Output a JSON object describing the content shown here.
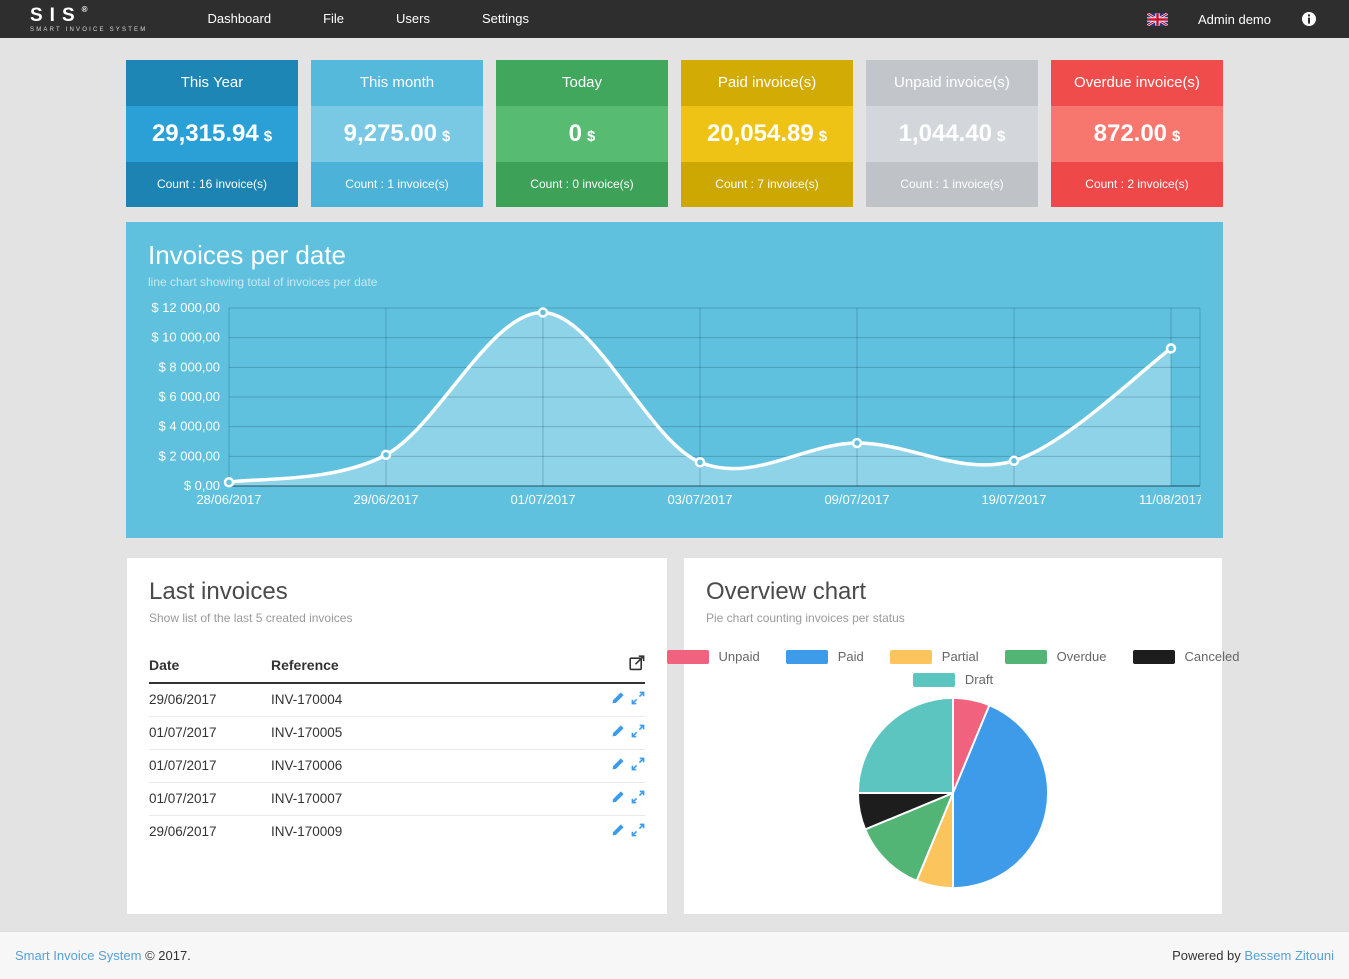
{
  "navbar": {
    "brand_name": "SIS",
    "brand_registered": "®",
    "brand_subtitle": "SMART INVOICE SYSTEM",
    "items": [
      "Dashboard",
      "File",
      "Users",
      "Settings"
    ],
    "user_label": "Admin demo"
  },
  "stat_cards": [
    {
      "title": "This Year",
      "value": "29,315.94",
      "currency": "$",
      "count_label": "Count : 16 invoice(s)",
      "header_color": "#1e86b5",
      "body_color": "#2aa0d6",
      "footer_color": "#1d83b2"
    },
    {
      "title": "This month",
      "value": "9,275.00",
      "currency": "$",
      "count_label": "Count : 1 invoice(s)",
      "header_color": "#55b9dc",
      "body_color": "#79c9e4",
      "footer_color": "#4cb2d7"
    },
    {
      "title": "Today",
      "value": "0",
      "currency": "$",
      "count_label": "Count : 0 invoice(s)",
      "header_color": "#41a75d",
      "body_color": "#57bb72",
      "footer_color": "#3da158"
    },
    {
      "title": "Paid invoice(s)",
      "value": "20,054.89",
      "currency": "$",
      "count_label": "Count : 7 invoice(s)",
      "header_color": "#d2ab04",
      "body_color": "#efc316",
      "footer_color": "#cda702"
    },
    {
      "title": "Unpaid invoice(s)",
      "value": "1,044.40",
      "currency": "$",
      "count_label": "Count : 1 invoice(s)",
      "header_color": "#c2c6cb",
      "body_color": "#d3d7db",
      "footer_color": "#bfc3c8"
    },
    {
      "title": "Overdue invoice(s)",
      "value": "872.00",
      "currency": "$",
      "count_label": "Count : 2 invoice(s)",
      "header_color": "#f04c4c",
      "body_color": "#f7776e",
      "footer_color": "#ee4848"
    }
  ],
  "invoices_chart_panel": {
    "title": "Invoices per date",
    "subtitle": "line chart showing total of invoices per date",
    "bg_color": "#5fc1de"
  },
  "chart_data": [
    {
      "type": "line",
      "title": "Invoices per date",
      "x": [
        "28/06/2017",
        "29/06/2017",
        "01/07/2017",
        "03/07/2017",
        "09/07/2017",
        "19/07/2017",
        "11/08/2017"
      ],
      "values": [
        250,
        2100,
        11700,
        1600,
        2900,
        1700,
        9275
      ],
      "ylabel": "$",
      "ylim": [
        0,
        12000
      ],
      "ytick_step": 2000,
      "ytick_labels": [
        "$ 12 000,00",
        "$ 10 000,00",
        "$ 8 000,00",
        "$ 6 000,00",
        "$ 4 000,00",
        "$ 2 000,00",
        "$ 0,00"
      ],
      "grid": true,
      "line_color": "#ffffff",
      "fill_color": "rgba(255,255,255,0.3)",
      "point_fill": "#5fc1de",
      "grid_color": "rgba(0,40,60,0.22)",
      "axis_color": "rgba(0,30,45,0.35)"
    },
    {
      "type": "pie",
      "title": "Overview chart",
      "labels": [
        "Unpaid",
        "Paid",
        "Partial",
        "Overdue",
        "Canceled",
        "Draft"
      ],
      "values": [
        1,
        7,
        1,
        2,
        1,
        4
      ],
      "colors": [
        "#f0627e",
        "#3d9be9",
        "#fbc45c",
        "#52b575",
        "#1d1d1d",
        "#5cc5c0"
      ],
      "legend_position": "top"
    }
  ],
  "last_invoices": {
    "title": "Last invoices",
    "subtitle": "Show list of the last 5 created invoices",
    "columns": [
      "Date",
      "Reference"
    ],
    "rows": [
      {
        "date": "29/06/2017",
        "reference": "INV-170004"
      },
      {
        "date": "01/07/2017",
        "reference": "INV-170005"
      },
      {
        "date": "01/07/2017",
        "reference": "INV-170006"
      },
      {
        "date": "01/07/2017",
        "reference": "INV-170007"
      },
      {
        "date": "29/06/2017",
        "reference": "INV-170009"
      }
    ]
  },
  "overview_panel": {
    "title": "Overview chart",
    "subtitle": "Pie chart counting invoices per status"
  },
  "footer": {
    "left_link": "Smart Invoice System",
    "left_text": "© 2017.",
    "right_text": "Powered by",
    "right_link": "Bessem Zitouni"
  },
  "colors": {
    "navbar_bg": "#2e2e2e",
    "action_icon": "#3d9be9"
  }
}
